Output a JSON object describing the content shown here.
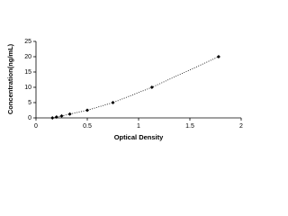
{
  "chart_data": {
    "type": "scatter",
    "x_label": "Optical Density",
    "y_label": "Concentration(ng/mL)",
    "x": [
      0.16,
      0.2,
      0.25,
      0.33,
      0.5,
      0.75,
      1.13,
      1.78
    ],
    "values": [
      0,
      0.31,
      0.625,
      1.25,
      2.5,
      5,
      10,
      20
    ],
    "color": "#000000",
    "line_style": "dotted",
    "xlim": [
      0,
      2
    ],
    "xticks": [
      0,
      0.5,
      1,
      1.5,
      2
    ],
    "ylim": [
      0,
      25
    ],
    "yticks": [
      0,
      5,
      10,
      15,
      20,
      25
    ]
  }
}
